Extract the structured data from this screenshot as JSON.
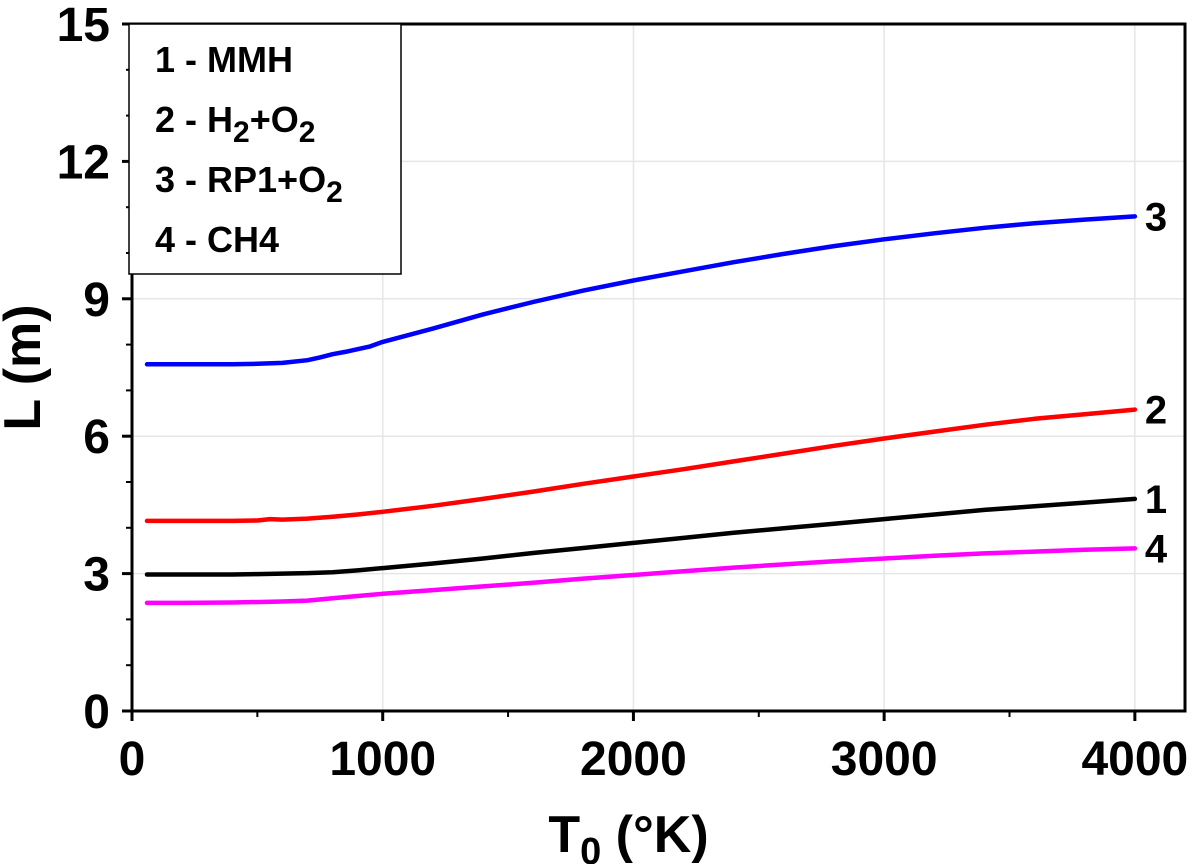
{
  "chart_data": {
    "type": "line",
    "xlabel": {
      "main": "T",
      "sub": "0",
      "rest": " (°K)"
    },
    "ylabel": "L (m)",
    "xlim": [
      0,
      4200
    ],
    "ylim": [
      0,
      15
    ],
    "xticks": [
      0,
      1000,
      2000,
      3000,
      4000
    ],
    "yticks": [
      0,
      3,
      6,
      9,
      12,
      15
    ],
    "grid": true,
    "legend_position": "top-left",
    "legend": [
      {
        "parts": [
          {
            "t": "1 - MMH"
          }
        ]
      },
      {
        "parts": [
          {
            "t": "2 - H"
          },
          {
            "t": "2",
            "sub": true
          },
          {
            "t": "+O"
          },
          {
            "t": "2",
            "sub": true
          }
        ]
      },
      {
        "parts": [
          {
            "t": "3 - RP1+O"
          },
          {
            "t": "2",
            "sub": true
          }
        ]
      },
      {
        "parts": [
          {
            "t": "4 - CH4"
          }
        ]
      }
    ],
    "series": [
      {
        "label": "1",
        "color": "#000000",
        "x": [
          60,
          200,
          400,
          500,
          600,
          700,
          800,
          900,
          1000,
          1200,
          1400,
          1600,
          1800,
          2000,
          2200,
          2400,
          2600,
          2800,
          3000,
          3200,
          3400,
          3600,
          3800,
          4000
        ],
        "y": [
          2.98,
          2.98,
          2.98,
          2.99,
          3.0,
          3.01,
          3.03,
          3.07,
          3.12,
          3.22,
          3.33,
          3.45,
          3.56,
          3.67,
          3.78,
          3.89,
          3.99,
          4.09,
          4.19,
          4.29,
          4.39,
          4.47,
          4.55,
          4.63
        ]
      },
      {
        "label": "2",
        "color": "#ff0000",
        "x": [
          60,
          200,
          400,
          500,
          550,
          600,
          700,
          800,
          900,
          1000,
          1200,
          1400,
          1600,
          1800,
          2000,
          2200,
          2400,
          2600,
          2800,
          3000,
          3200,
          3400,
          3600,
          3800,
          4000
        ],
        "y": [
          4.15,
          4.15,
          4.15,
          4.16,
          4.19,
          4.18,
          4.2,
          4.24,
          4.29,
          4.35,
          4.48,
          4.63,
          4.79,
          4.96,
          5.12,
          5.28,
          5.45,
          5.62,
          5.79,
          5.95,
          6.1,
          6.25,
          6.38,
          6.48,
          6.58
        ]
      },
      {
        "label": "3",
        "color": "#0000ff",
        "x": [
          60,
          200,
          400,
          500,
          600,
          700,
          750,
          800,
          850,
          900,
          950,
          1000,
          1200,
          1400,
          1600,
          1800,
          2000,
          2200,
          2400,
          2600,
          2800,
          3000,
          3200,
          3400,
          3600,
          3800,
          4000
        ],
        "y": [
          7.57,
          7.57,
          7.57,
          7.58,
          7.6,
          7.66,
          7.72,
          7.79,
          7.84,
          7.9,
          7.96,
          8.06,
          8.35,
          8.66,
          8.93,
          9.18,
          9.4,
          9.6,
          9.8,
          9.98,
          10.15,
          10.3,
          10.43,
          10.55,
          10.65,
          10.73,
          10.8
        ]
      },
      {
        "label": "4",
        "color": "#ff00ff",
        "x": [
          60,
          200,
          400,
          600,
          700,
          800,
          900,
          1000,
          1200,
          1400,
          1600,
          1800,
          2000,
          2200,
          2400,
          2600,
          2800,
          3000,
          3200,
          3400,
          3600,
          3800,
          4000
        ],
        "y": [
          2.36,
          2.36,
          2.37,
          2.39,
          2.41,
          2.46,
          2.51,
          2.56,
          2.64,
          2.72,
          2.8,
          2.89,
          2.97,
          3.05,
          3.13,
          3.2,
          3.27,
          3.33,
          3.39,
          3.44,
          3.48,
          3.52,
          3.55
        ]
      }
    ]
  }
}
